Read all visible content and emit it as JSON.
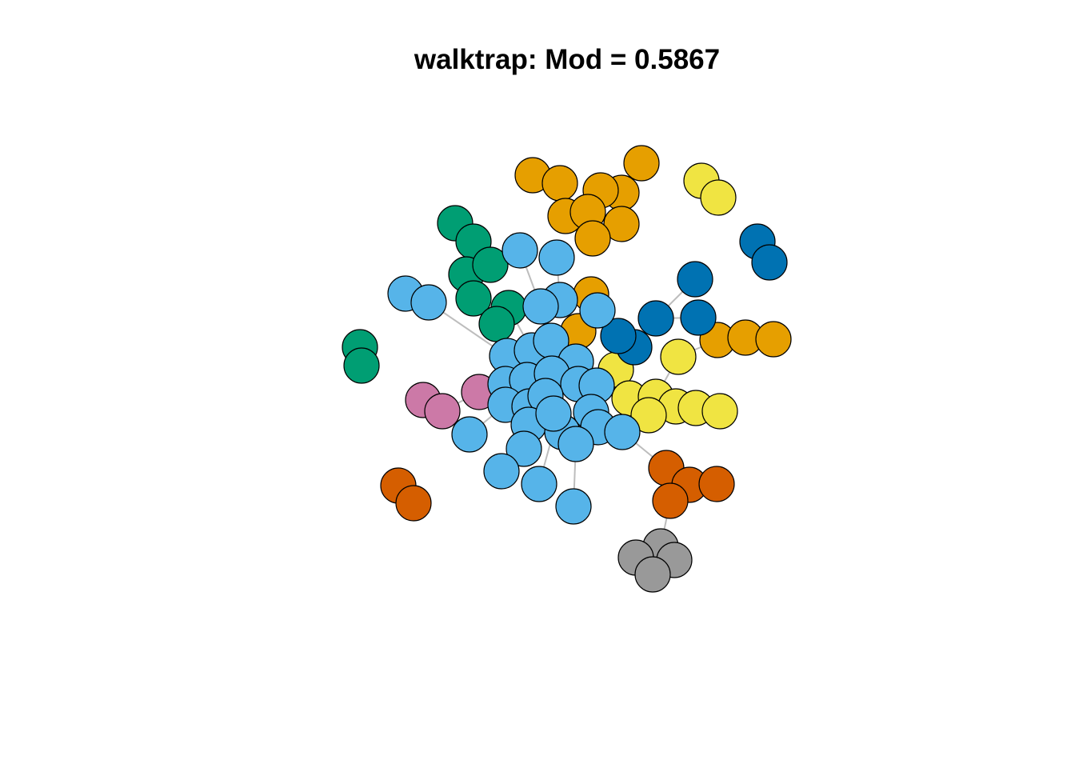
{
  "title": "walktrap: Mod = 0.5867",
  "community_colors": {
    "light_blue": "#56B4E9",
    "orange": "#E69F00",
    "green": "#009E73",
    "dark_blue": "#0072B2",
    "yellow": "#F0E442",
    "vermillion": "#D55E00",
    "pink": "#CC79A7",
    "gray": "#999999"
  },
  "node_outline": "#000000",
  "edge_color": "#bdbdbd"
}
